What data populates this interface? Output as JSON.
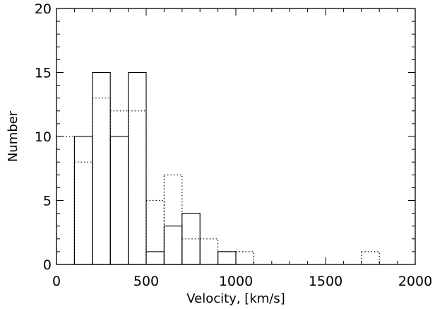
{
  "chart_data": {
    "type": "bar",
    "xlabel": "Velocity, [km/s]",
    "ylabel": "Number",
    "xlim": [
      0,
      2000
    ],
    "ylim": [
      0,
      20
    ],
    "x_ticks": [
      "0",
      "500",
      "1000",
      "1500",
      "2000"
    ],
    "y_ticks": [
      "0",
      "5",
      "10",
      "15",
      "20"
    ],
    "bin_width": 100,
    "series": [
      {
        "style": "solid",
        "bins": [
          {
            "x0": 100,
            "x1": 200,
            "value": 10
          },
          {
            "x0": 200,
            "x1": 300,
            "value": 15
          },
          {
            "x0": 300,
            "x1": 400,
            "value": 10
          },
          {
            "x0": 400,
            "x1": 500,
            "value": 15
          },
          {
            "x0": 500,
            "x1": 600,
            "value": 1
          },
          {
            "x0": 600,
            "x1": 700,
            "value": 3
          },
          {
            "x0": 700,
            "x1": 800,
            "value": 4
          },
          {
            "x0": 800,
            "x1": 900,
            "value": 0
          },
          {
            "x0": 900,
            "x1": 1000,
            "value": 1
          }
        ]
      },
      {
        "style": "dotted",
        "bins": [
          {
            "x0": 0,
            "x1": 100,
            "value": 10
          },
          {
            "x0": 100,
            "x1": 200,
            "value": 8
          },
          {
            "x0": 200,
            "x1": 300,
            "value": 13
          },
          {
            "x0": 300,
            "x1": 400,
            "value": 12
          },
          {
            "x0": 400,
            "x1": 500,
            "value": 12
          },
          {
            "x0": 500,
            "x1": 600,
            "value": 5
          },
          {
            "x0": 600,
            "x1": 700,
            "value": 7
          },
          {
            "x0": 700,
            "x1": 800,
            "value": 2
          },
          {
            "x0": 800,
            "x1": 900,
            "value": 2
          },
          {
            "x0": 900,
            "x1": 1000,
            "value": 1
          },
          {
            "x0": 1000,
            "x1": 1100,
            "value": 1
          },
          {
            "x0": 1700,
            "x1": 1800,
            "value": 1
          }
        ]
      }
    ]
  }
}
